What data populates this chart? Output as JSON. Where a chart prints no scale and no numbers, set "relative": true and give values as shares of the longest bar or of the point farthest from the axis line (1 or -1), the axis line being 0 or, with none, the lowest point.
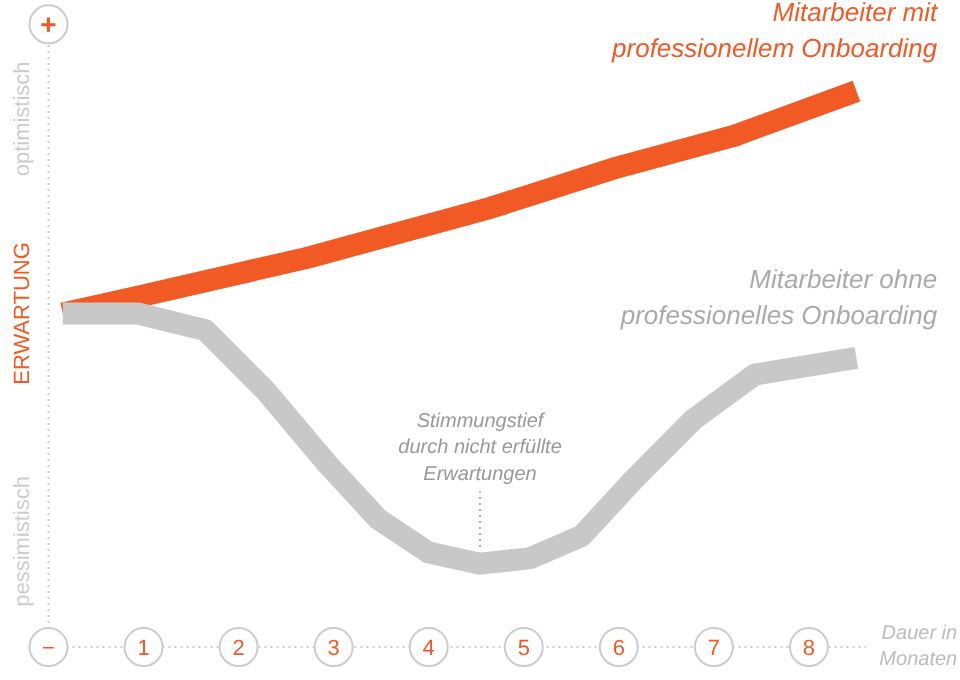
{
  "chart_data": {
    "type": "line",
    "relative": true,
    "ylabel": "ERWARTUNG",
    "xlabel": "Dauer in\nMonaten",
    "xlim": [
      0,
      8.6
    ],
    "xticks": [
      {
        "value": 0,
        "label": "−"
      },
      1,
      2,
      3,
      4,
      5,
      6,
      7,
      8
    ],
    "annotations": [
      "+",
      "optimistisch",
      "pessimistisch",
      {
        "text": "Stimmungstief\ndurch nicht erfüllte\nErwartungen",
        "x": 4.54,
        "y": 0.15
      }
    ],
    "series": [
      {
        "name": "Mitarbeiter mit\nprofessionellem Onboarding",
        "color": "#f15a24",
        "x": [
          0.15,
          0.94,
          2.72,
          4.65,
          5.93,
          7.22,
          8.5
        ],
        "values": [
          0.6,
          0.63,
          0.7,
          0.79,
          0.86,
          0.92,
          1.0
        ]
      },
      {
        "name": "Mitarbeiter ohne\nprofessionelles Onboarding",
        "color": "#c8c8c8",
        "x": [
          0.15,
          0.94,
          1.65,
          2.29,
          2.93,
          3.47,
          4.0,
          4.54,
          5.07,
          5.61,
          6.15,
          6.79,
          7.43,
          8.5
        ],
        "values": [
          0.6,
          0.6,
          0.57,
          0.46,
          0.33,
          0.23,
          0.17,
          0.15,
          0.16,
          0.2,
          0.3,
          0.41,
          0.49,
          0.52
        ]
      }
    ]
  }
}
